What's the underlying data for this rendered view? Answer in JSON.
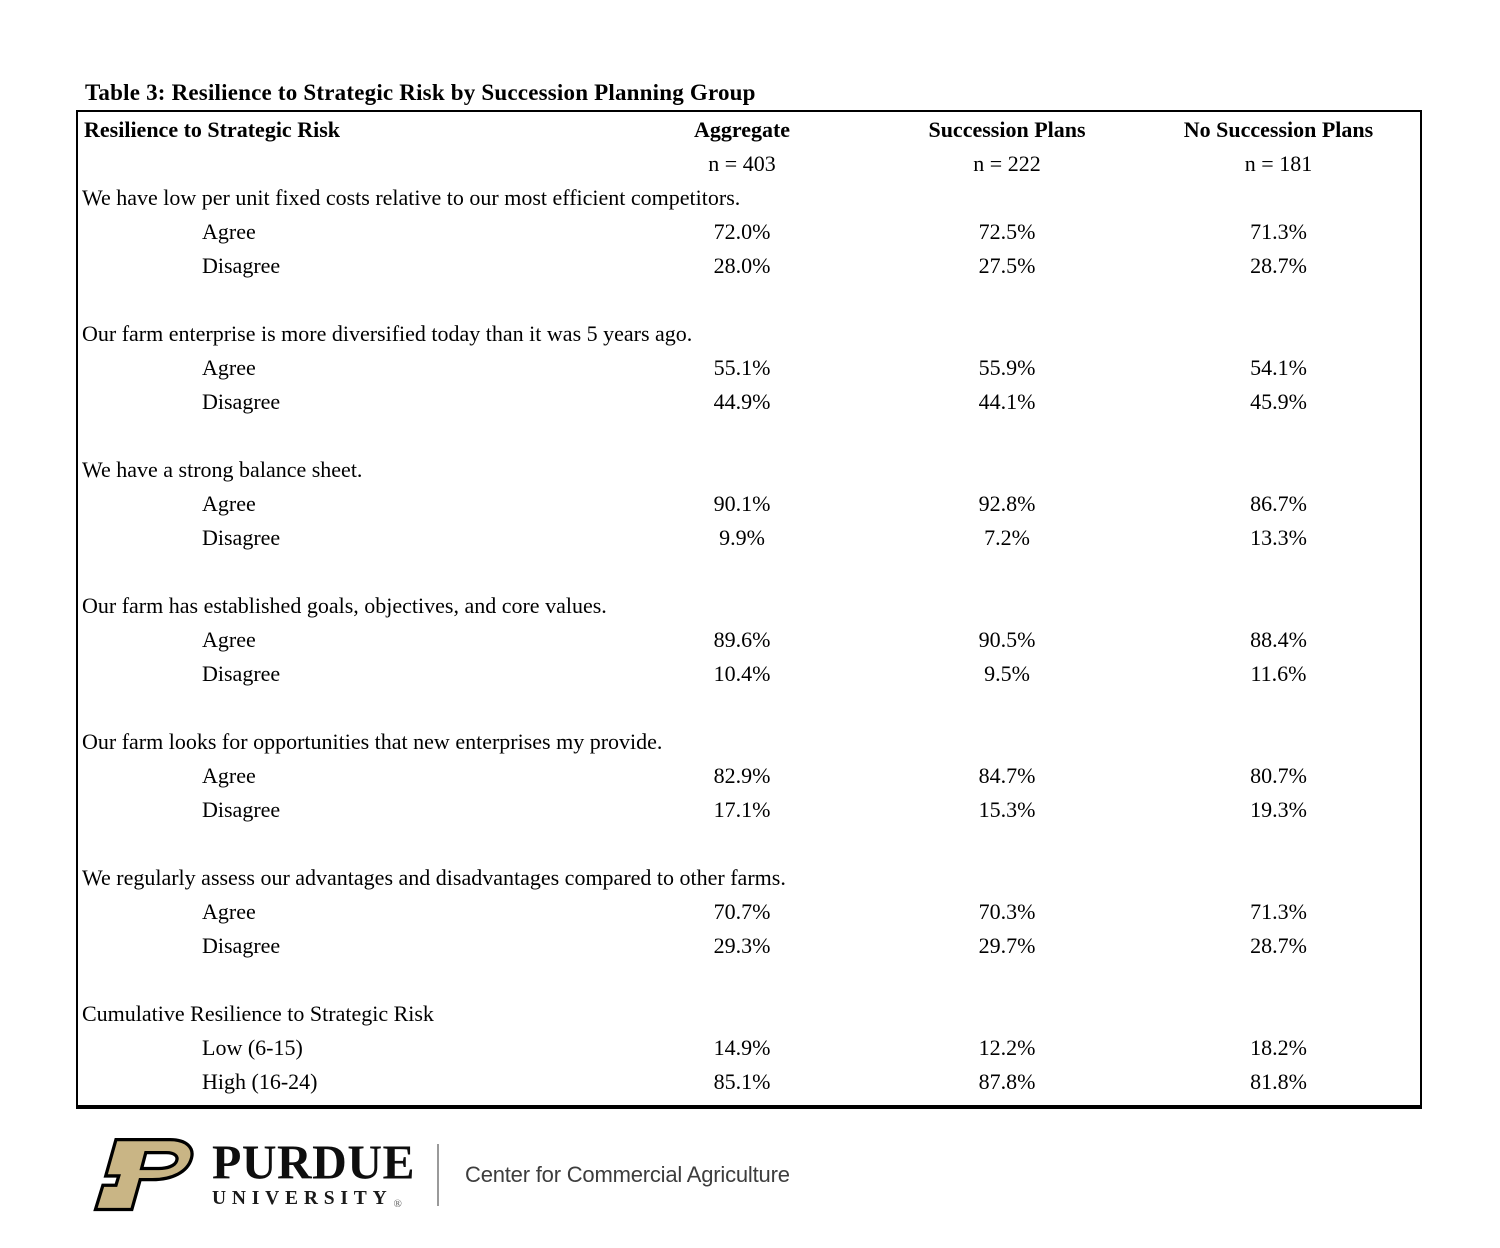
{
  "page": {
    "title": "Table 3: Resilience to Strategic Risk by Succession Planning Group"
  },
  "table": {
    "header": {
      "col0": "Resilience to Strategic Risk",
      "cols": [
        "Aggregate",
        "Succession Plans",
        "No Succession Plans"
      ],
      "ns": [
        "n = 403",
        "n = 222",
        "n = 181"
      ]
    },
    "sections": [
      {
        "question": "We have low per unit fixed costs relative to our most efficient competitors.",
        "rows": [
          {
            "label": "Agree",
            "values": [
              "72.0%",
              "72.5%",
              "71.3%"
            ]
          },
          {
            "label": "Disagree",
            "values": [
              "28.0%",
              "27.5%",
              "28.7%"
            ]
          }
        ]
      },
      {
        "question": "Our farm enterprise is more diversified today than it was 5 years ago.",
        "rows": [
          {
            "label": "Agree",
            "values": [
              "55.1%",
              "55.9%",
              "54.1%"
            ]
          },
          {
            "label": "Disagree",
            "values": [
              "44.9%",
              "44.1%",
              "45.9%"
            ]
          }
        ]
      },
      {
        "question": "We have a strong balance sheet.",
        "rows": [
          {
            "label": "Agree",
            "values": [
              "90.1%",
              "92.8%",
              "86.7%"
            ]
          },
          {
            "label": "Disagree",
            "values": [
              "9.9%",
              "7.2%",
              "13.3%"
            ]
          }
        ]
      },
      {
        "question": "Our farm has established goals, objectives, and core values.",
        "rows": [
          {
            "label": "Agree",
            "values": [
              "89.6%",
              "90.5%",
              "88.4%"
            ]
          },
          {
            "label": "Disagree",
            "values": [
              "10.4%",
              "9.5%",
              "11.6%"
            ]
          }
        ]
      },
      {
        "question": "Our farm looks for opportunities that new enterprises my provide.",
        "rows": [
          {
            "label": "Agree",
            "values": [
              "82.9%",
              "84.7%",
              "80.7%"
            ]
          },
          {
            "label": "Disagree",
            "values": [
              "17.1%",
              "15.3%",
              "19.3%"
            ]
          }
        ]
      },
      {
        "question": "We regularly assess our advantages and disadvantages compared to other farms.",
        "rows": [
          {
            "label": "Agree",
            "values": [
              "70.7%",
              "70.3%",
              "71.3%"
            ]
          },
          {
            "label": "Disagree",
            "values": [
              "29.3%",
              "29.7%",
              "28.7%"
            ]
          }
        ]
      },
      {
        "question": "Cumulative Resilience to Strategic Risk",
        "rows": [
          {
            "label": "Low (6-15)",
            "values": [
              "14.9%",
              "12.2%",
              "18.2%"
            ]
          },
          {
            "label": "High (16-24)",
            "values": [
              "85.1%",
              "87.8%",
              "81.8%"
            ]
          }
        ]
      }
    ]
  },
  "branding": {
    "institution": "PURDUE",
    "institution_line2": "UNIVERSITY",
    "registered_mark": "®",
    "unit_name": "Center for Commercial Agriculture",
    "motion_p_icon": "purdue-motion-p",
    "colors": {
      "purdue_gold": "#C9B585",
      "logo_black": "#0e0e0e",
      "divider_gray": "#9a9a9a",
      "unit_text": "#3d3d3d"
    }
  }
}
